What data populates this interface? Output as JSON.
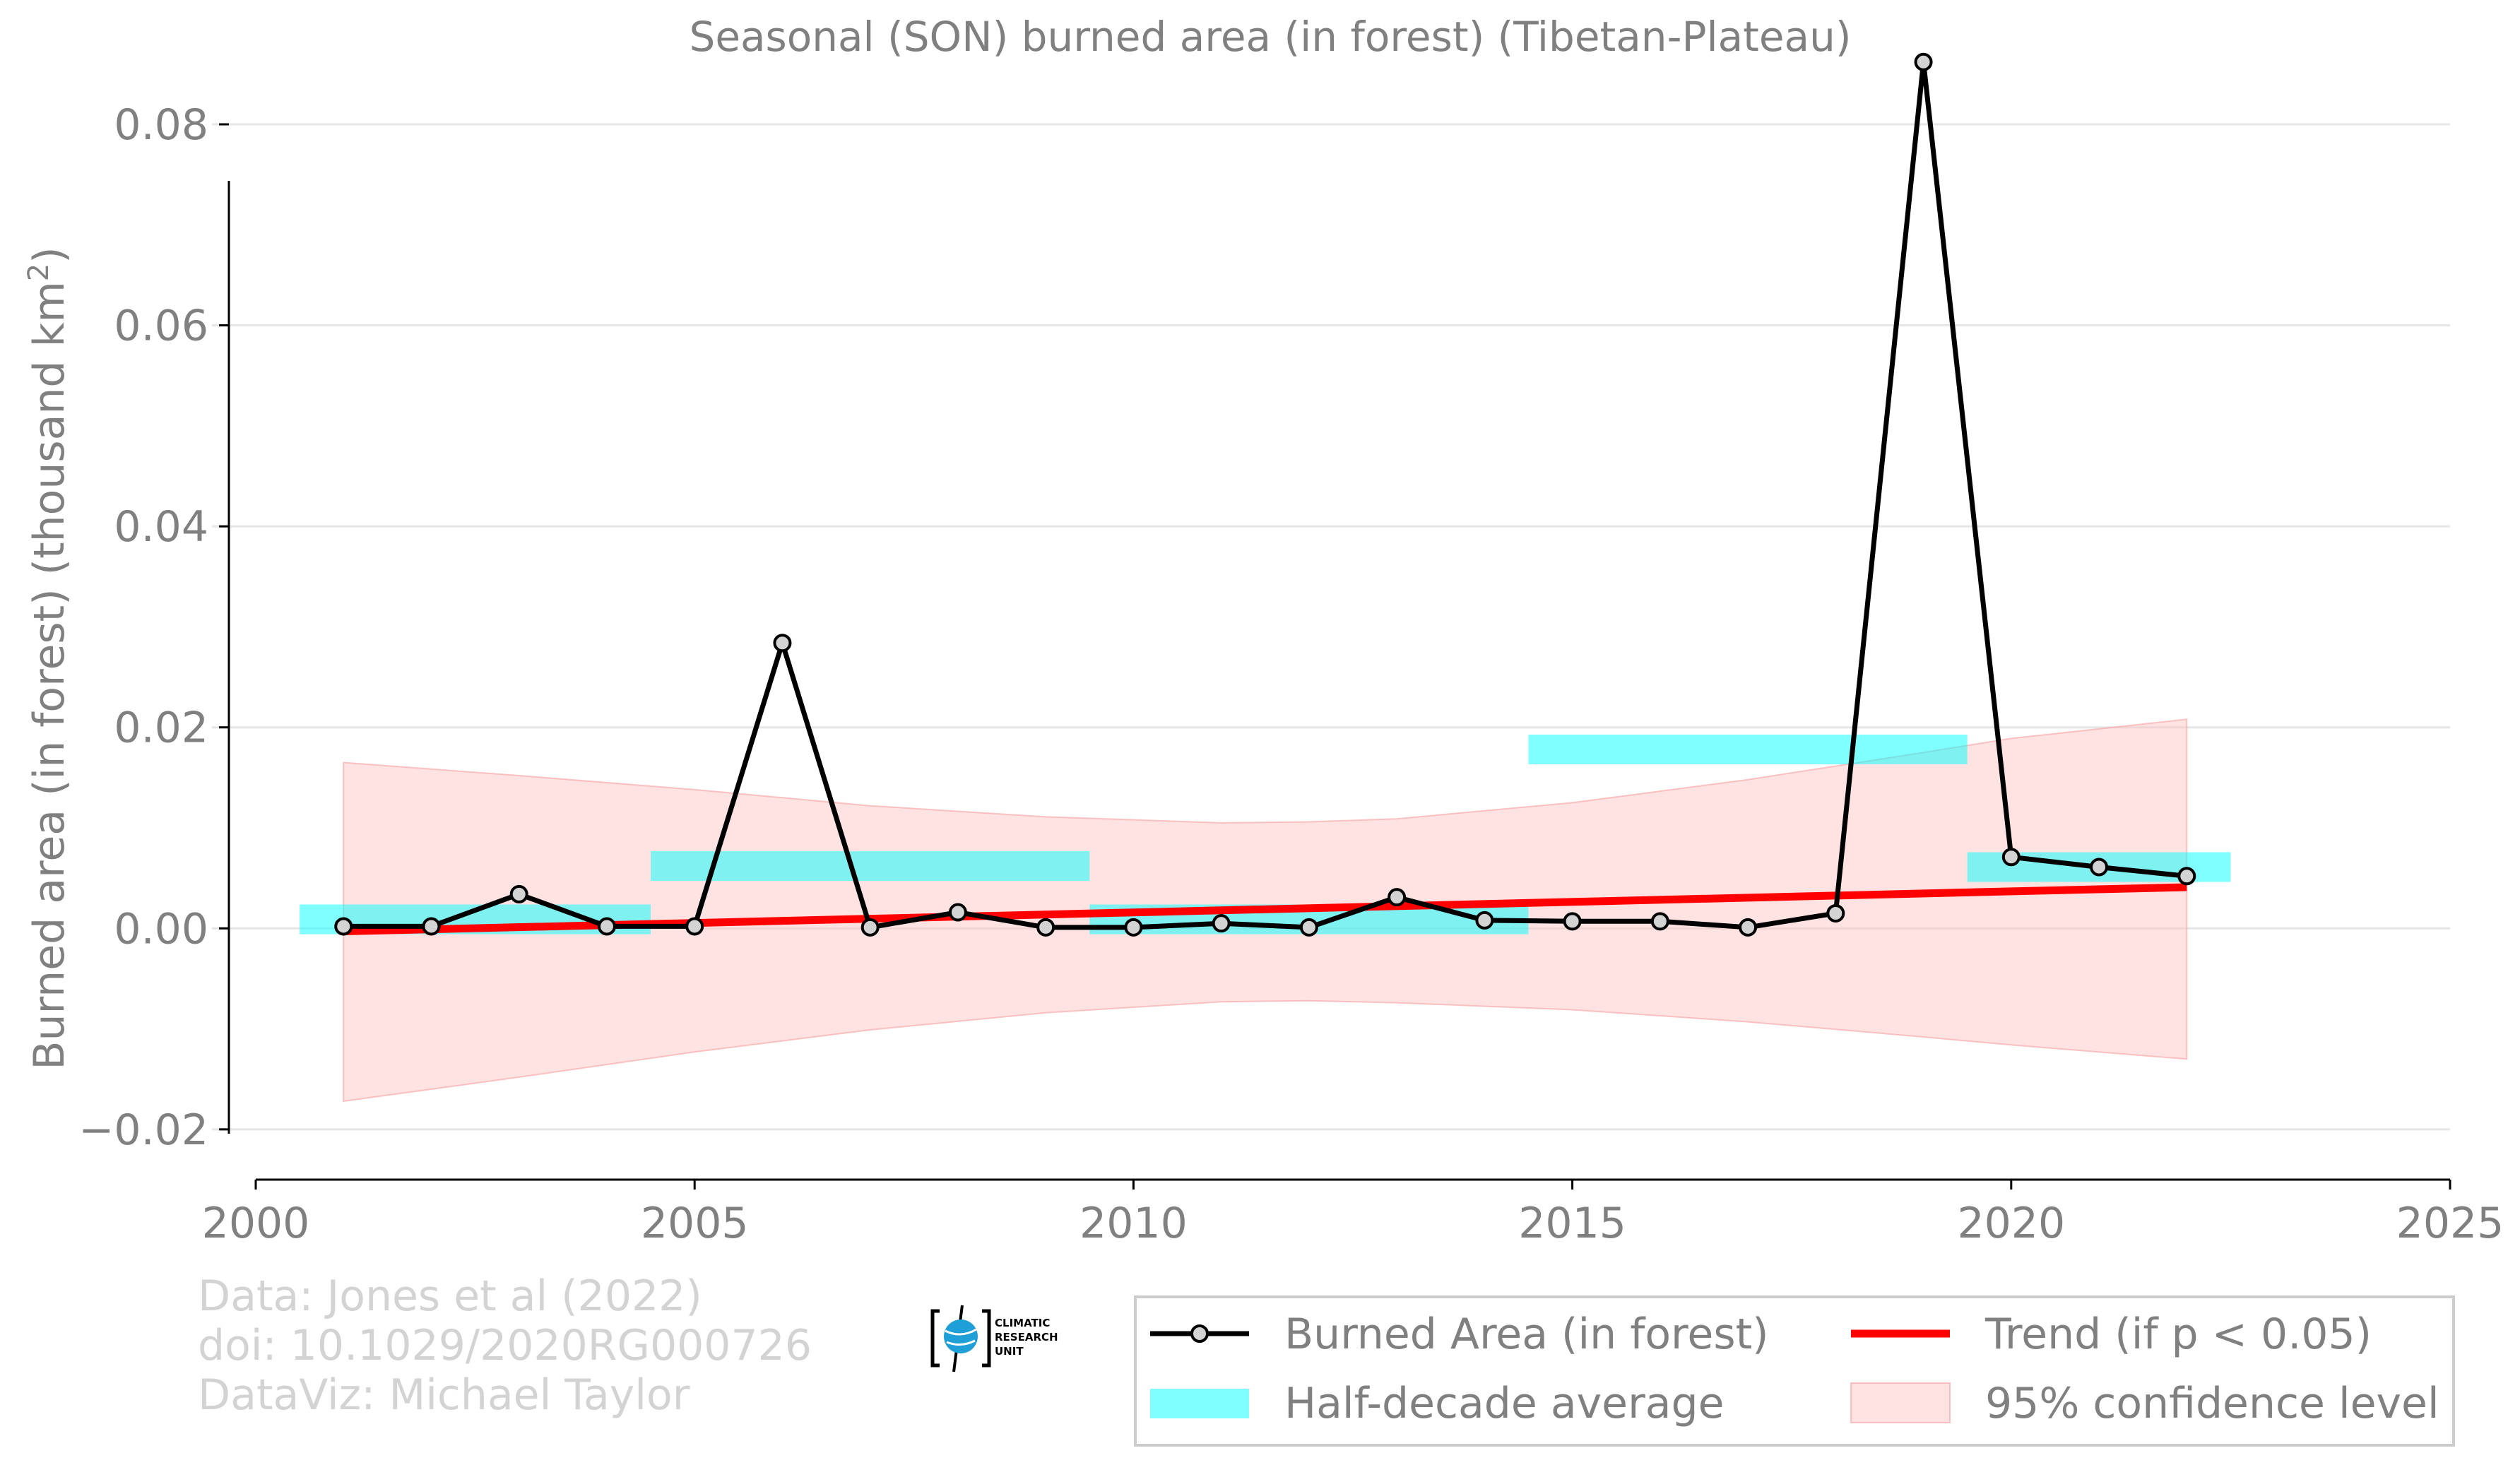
{
  "chart_data": {
    "type": "line",
    "title": "Seasonal (SON) burned area (in forest) (Tibetan-Plateau)",
    "xlabel": "",
    "ylabel": "Burned area (in forest) (thousand km",
    "ylabel_sup": "2",
    "ylabel_close": ")",
    "xlim": [
      2000,
      2025
    ],
    "ylim": [
      -0.025,
      0.0845
    ],
    "x_ticks": [
      2000,
      2005,
      2010,
      2015,
      2020,
      2025
    ],
    "x_tick_labels": [
      "2000",
      "2005",
      "2010",
      "2015",
      "2020",
      "2025"
    ],
    "y_ticks": [
      -0.02,
      0.0,
      0.02,
      0.04,
      0.06,
      0.08
    ],
    "y_tick_labels": [
      "−0.02",
      "0.00",
      "0.02",
      "0.04",
      "0.06",
      "0.08"
    ],
    "grid": "horizontal",
    "series": [
      {
        "name": "Burned Area (in forest)",
        "color": "#000000",
        "marker_fill": "#d3d3d3",
        "x": [
          2001,
          2002,
          2003,
          2004,
          2005,
          2006,
          2007,
          2008,
          2009,
          2010,
          2011,
          2012,
          2013,
          2014,
          2015,
          2016,
          2017,
          2018,
          2019,
          2020,
          2021,
          2022
        ],
        "y": [
          0.0002,
          0.0002,
          0.0034,
          0.0002,
          0.0002,
          0.0284,
          0.0001,
          0.0016,
          0.0001,
          0.0001,
          0.0005,
          0.0001,
          0.0031,
          0.0008,
          0.0007,
          0.0007,
          0.0001,
          0.0015,
          0.0862,
          0.0071,
          0.0061,
          0.0052
        ]
      },
      {
        "name": "Trend (if p < 0.05)",
        "color": "#ff0000",
        "x": [
          2001,
          2022
        ],
        "y": [
          -0.0003,
          0.0041
        ]
      },
      {
        "name": "95% confidence level",
        "color": "#ffc0c0",
        "x": [
          2001,
          2003,
          2005,
          2007,
          2009,
          2011,
          2012,
          2013,
          2015,
          2017,
          2019,
          2020,
          2022
        ],
        "upper": [
          0.0165,
          0.0152,
          0.0138,
          0.0122,
          0.0111,
          0.0105,
          0.0106,
          0.0109,
          0.0125,
          0.0148,
          0.0175,
          0.0189,
          0.0208
        ],
        "lower": [
          -0.0172,
          -0.0148,
          -0.0123,
          -0.0101,
          -0.0084,
          -0.0073,
          -0.0072,
          -0.0074,
          -0.0081,
          -0.0093,
          -0.0108,
          -0.0116,
          -0.013
        ]
      },
      {
        "name": "Half-decade average",
        "color": "#00ffff",
        "segments": [
          {
            "x0": 2000.5,
            "x1": 2004.5,
            "y": 0.0009
          },
          {
            "x0": 2004.5,
            "x1": 2009.5,
            "y": 0.0062
          },
          {
            "x0": 2009.5,
            "x1": 2014.5,
            "y": 0.0009
          },
          {
            "x0": 2014.5,
            "x1": 2019.5,
            "y": 0.0178
          },
          {
            "x0": 2019.5,
            "x1": 2022.5,
            "y": 0.0061
          }
        ]
      }
    ],
    "legend": {
      "placement": "bottom-right",
      "entries": [
        "Burned Area (in forest)",
        "Trend (if p < 0.05)",
        "Half-decade average",
        "95% confidence level"
      ]
    },
    "credits": [
      "Data: Jones et al (2022)",
      "doi: 10.1029/2020RG000726",
      "DataViz: Michael Taylor"
    ],
    "logo_text": [
      "CLIMATIC",
      "RESEARCH",
      "UNIT"
    ]
  }
}
